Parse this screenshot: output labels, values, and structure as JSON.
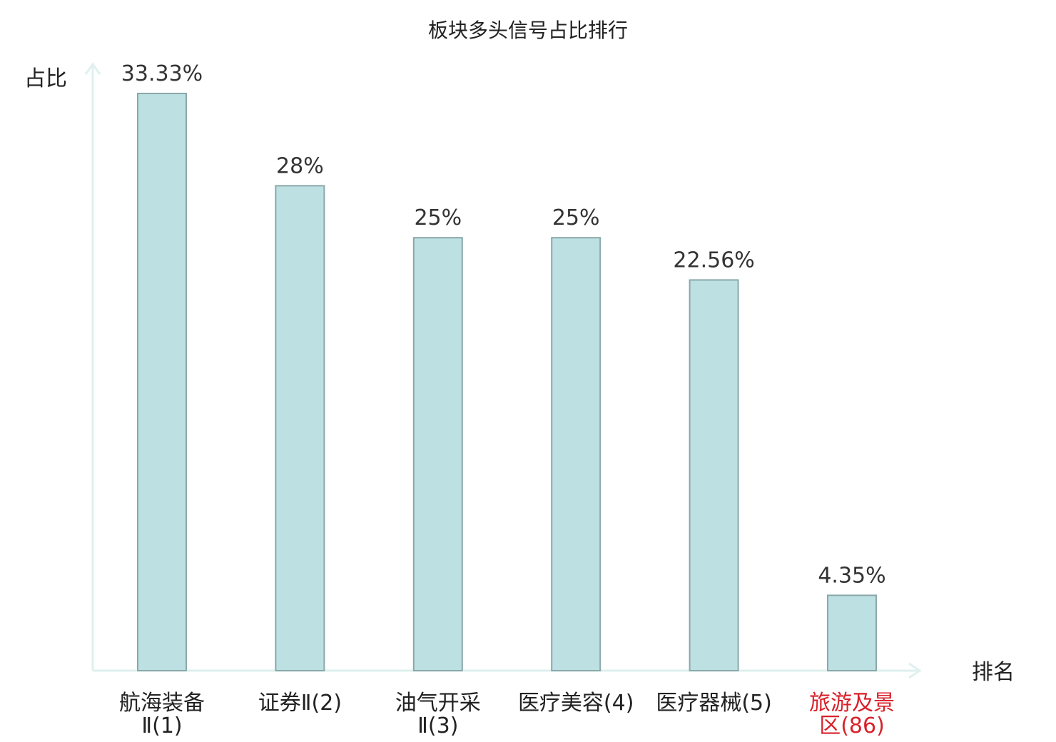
{
  "chart_data": {
    "type": "bar",
    "title": "板块多头信号占比排行",
    "ylabel": "占比",
    "xlabel": "排名",
    "categories": [
      [
        "航海装备",
        "Ⅱ(1)"
      ],
      [
        "证券Ⅱ(2)"
      ],
      [
        "油气开采",
        "Ⅱ(3)"
      ],
      [
        "医疗美容(4)"
      ],
      [
        "医疗器械(5)"
      ],
      [
        "旅游及景",
        "区(86)"
      ]
    ],
    "values": [
      33.33,
      28,
      25,
      25,
      22.56,
      4.35
    ],
    "value_labels": [
      "33.33%",
      "28%",
      "25%",
      "25%",
      "22.56%",
      "4.35%"
    ],
    "highlight_index": 5,
    "ylim": [
      0,
      35
    ],
    "grid": false,
    "legend": "none"
  },
  "colors": {
    "bar_fill": "#bde0e3",
    "bar_stroke": "#8aa8aa",
    "axis": "#dff0ee",
    "text": "#222222",
    "value_text": "#333333",
    "highlight": "#d8202a"
  }
}
